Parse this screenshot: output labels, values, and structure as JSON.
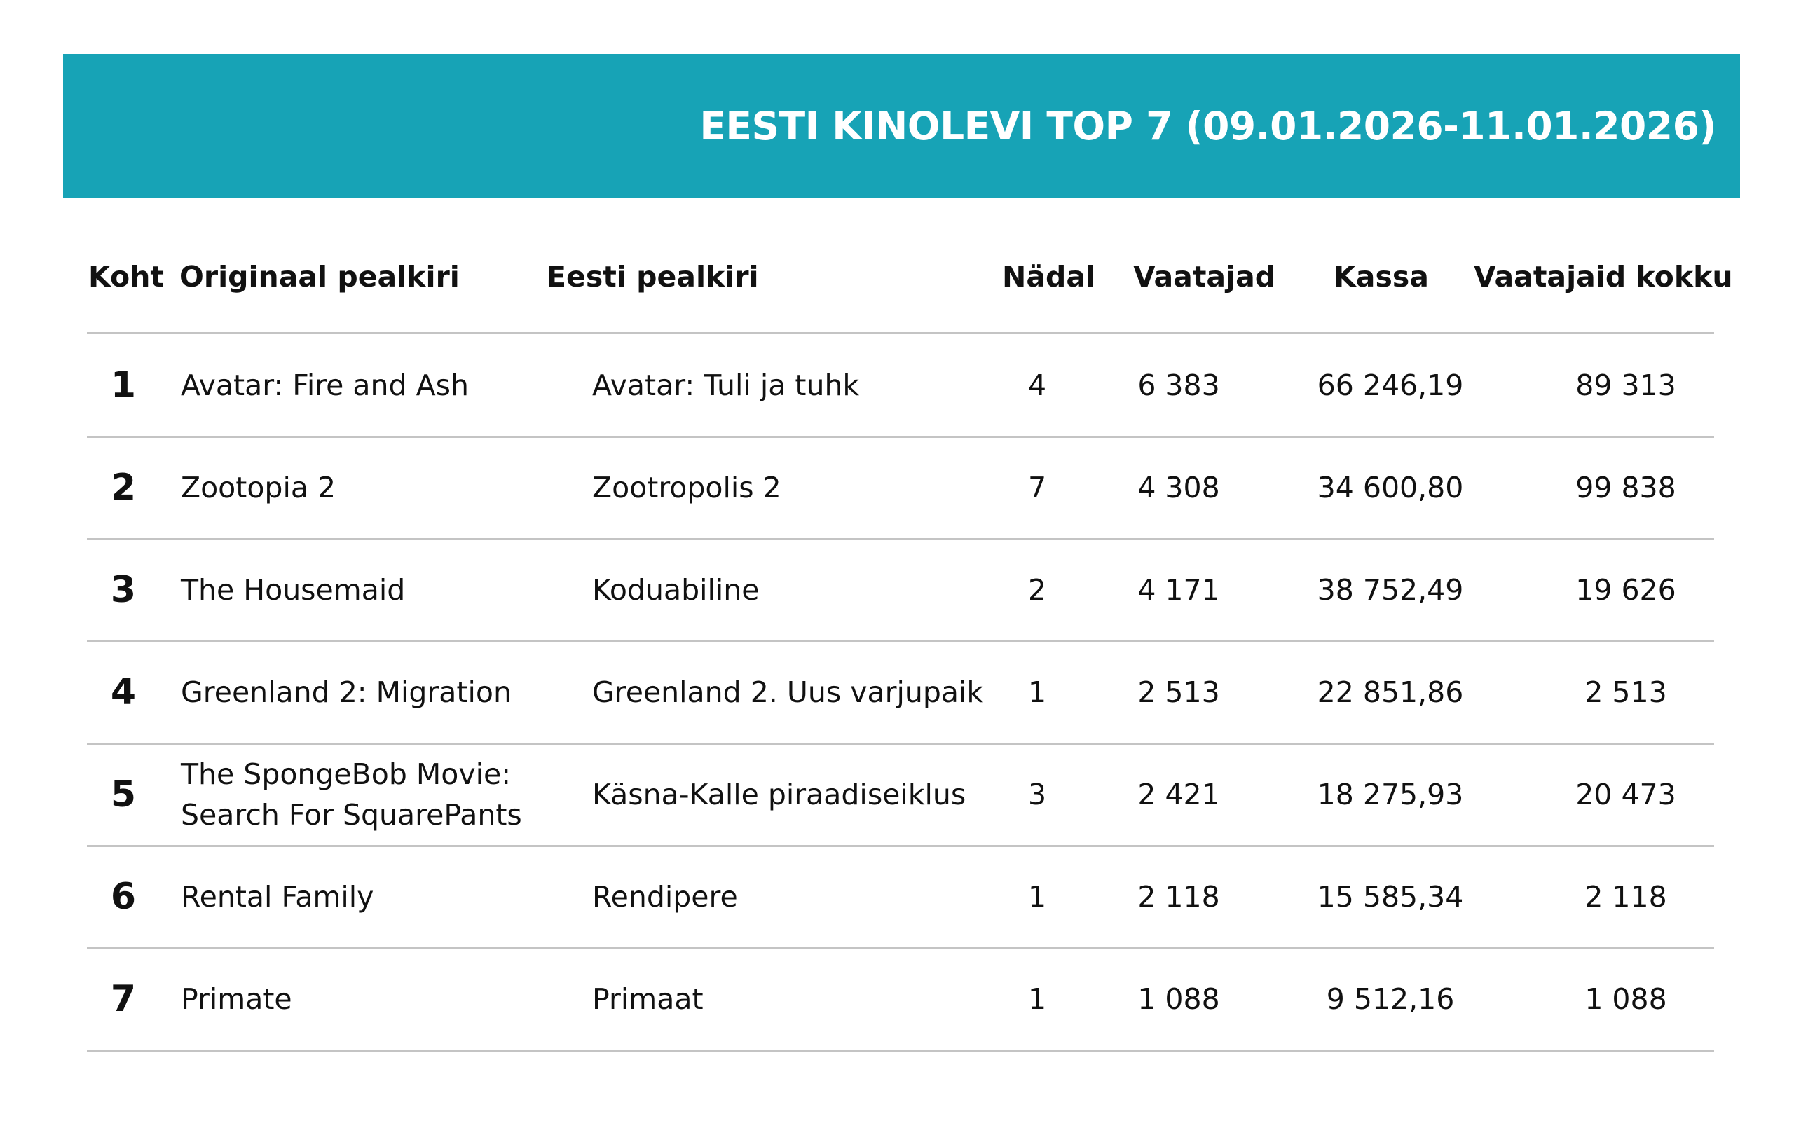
{
  "title": "EESTI KINOLEVI TOP 7 (09.01.2026-11.01.2026)",
  "columns": {
    "rank": "Koht",
    "original": "Originaal pealkiri",
    "estonian": "Eesti pealkiri",
    "week": "Nädal",
    "viewers": "Vaatajad",
    "boxoffice": "Kassa",
    "total": "Vaatajaid kokku"
  },
  "rows": [
    {
      "rank": "1",
      "original": [
        "Avatar: Fire and Ash"
      ],
      "estonian": "Avatar: Tuli ja tuhk",
      "week": "4",
      "viewers": "6 383",
      "boxoffice": "66 246,19",
      "total": "89 313"
    },
    {
      "rank": "2",
      "original": [
        "Zootopia 2"
      ],
      "estonian": "Zootropolis 2",
      "week": "7",
      "viewers": "4 308",
      "boxoffice": "34 600,80",
      "total": "99 838"
    },
    {
      "rank": "3",
      "original": [
        "The Housemaid"
      ],
      "estonian": "Koduabiline",
      "week": "2",
      "viewers": "4 171",
      "boxoffice": "38 752,49",
      "total": "19 626"
    },
    {
      "rank": "4",
      "original": [
        "Greenland 2: Migration"
      ],
      "estonian": "Greenland 2. Uus varjupaik",
      "week": "1",
      "viewers": "2 513",
      "boxoffice": "22 851,86",
      "total": "2 513"
    },
    {
      "rank": "5",
      "original": [
        "The SpongeBob Movie:",
        "Search For SquarePants"
      ],
      "estonian": "Käsna-Kalle piraadiseiklus",
      "week": "3",
      "viewers": "2 421",
      "boxoffice": "18 275,93",
      "total": "20 473"
    },
    {
      "rank": "6",
      "original": [
        "Rental Family"
      ],
      "estonian": "Rendipere",
      "week": "1",
      "viewers": "2 118",
      "boxoffice": "15 585,34",
      "total": "2 118"
    },
    {
      "rank": "7",
      "original": [
        "Primate"
      ],
      "estonian": "Primaat",
      "week": "1",
      "viewers": "1 088",
      "boxoffice": "9 512,16",
      "total": "1 088"
    }
  ]
}
